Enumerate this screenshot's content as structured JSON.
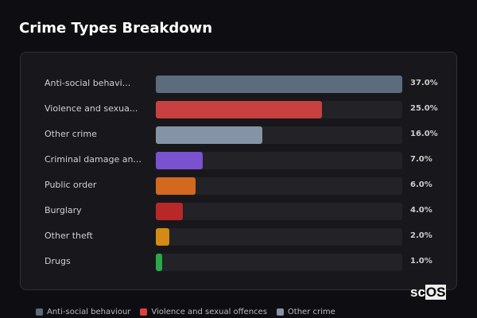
{
  "title": "Crime Types Breakdown",
  "chart_data": {
    "type": "bar",
    "orientation": "horizontal",
    "title": "Crime Types Breakdown",
    "categories": [
      "Anti-social behavi...",
      "Violence and sexua...",
      "Other crime",
      "Criminal damage an...",
      "Public order",
      "Burglary",
      "Other theft",
      "Drugs"
    ],
    "values": [
      37.0,
      25.0,
      16.0,
      7.0,
      6.0,
      4.0,
      2.0,
      1.0
    ],
    "value_labels": [
      "37.0%",
      "25.0%",
      "16.0%",
      "7.0%",
      "6.0%",
      "4.0%",
      "2.0%",
      "1.0%"
    ],
    "colors": [
      "#5c6b7e",
      "#c84040",
      "#8593a6",
      "#7a52d0",
      "#d2691e",
      "#b82828",
      "#d48a14",
      "#2aa84a"
    ],
    "xlim": [
      0,
      37
    ],
    "legend": {
      "placement": "bottom",
      "items": [
        {
          "name": "Anti-social behaviour",
          "color": "#5c6b7e"
        },
        {
          "name": "Violence and sexual offences",
          "color": "#e04040"
        },
        {
          "name": "Other crime",
          "color": "#8593a6"
        }
      ]
    }
  },
  "logo": {
    "left": "sc",
    "right": "OS"
  }
}
